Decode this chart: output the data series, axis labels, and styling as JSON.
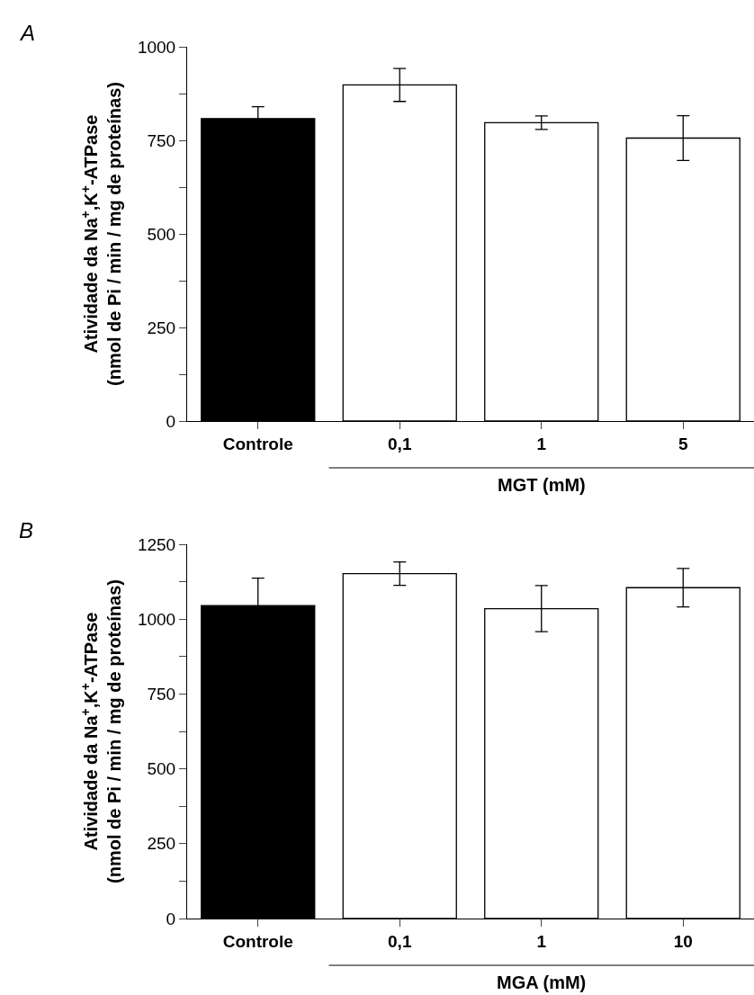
{
  "chart_data": [
    {
      "type": "bar",
      "annotations": [
        "A"
      ],
      "xlabel": "MGT (mM)",
      "ylabel": "Atividade da Na$^{+}$,K$^{+}$-ATPase\n(nmol de Pi / min / mg de proteínas)",
      "categories": [
        "Controle",
        "0,1",
        "1",
        "5"
      ],
      "values": [
        808,
        898,
        797,
        756
      ],
      "errors": [
        32,
        44,
        18,
        60
      ],
      "colors": [
        "#000000",
        "#ffffff",
        "#ffffff",
        "#ffffff"
      ],
      "ylim": [
        0,
        1000
      ],
      "yticks": [
        0,
        {
          "value": 125,
          "label": null
        },
        250,
        {
          "value": 375,
          "label": null
        },
        500,
        {
          "value": 625,
          "label": null
        },
        750,
        {
          "value": 875,
          "label": null
        },
        1000
      ],
      "grid": false
    },
    {
      "type": "bar",
      "annotations": [
        "B"
      ],
      "xlabel": "MGA (mM)",
      "ylabel": "Atividade da Na$^{+}$,K$^{+}$-ATPase\n(nmol de Pi / min / mg de proteínas)",
      "categories": [
        "Controle",
        "0,1",
        "1",
        "10"
      ],
      "values": [
        1045,
        1152,
        1035,
        1105
      ],
      "errors": [
        92,
        39,
        77,
        64
      ],
      "colors": [
        "#000000",
        "#ffffff",
        "#ffffff",
        "#ffffff"
      ],
      "ylim": [
        0,
        1250
      ],
      "yticks": [
        0,
        {
          "value": 125,
          "label": null
        },
        250,
        {
          "value": 375,
          "label": null
        },
        500,
        {
          "value": 625,
          "label": null
        },
        750,
        {
          "value": 875,
          "label": null
        },
        1000,
        {
          "value": 1125,
          "label": null
        },
        1250
      ],
      "grid": false
    }
  ]
}
